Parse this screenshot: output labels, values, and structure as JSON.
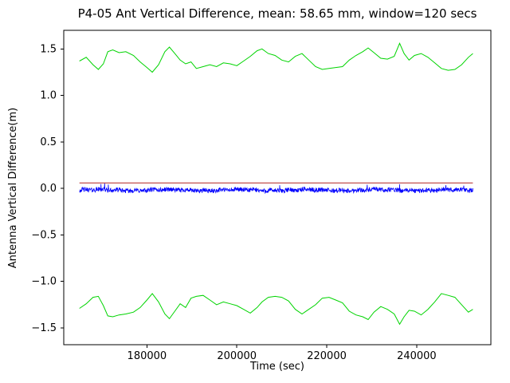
{
  "figure": {
    "title": "P4-05 Ant Vertical Difference, mean: 58.65 mm, window=120 secs",
    "xlabel": "Time (sec)",
    "ylabel": "Antenna Vertical Difference(m)"
  },
  "chart_data": {
    "type": "line",
    "title": "P4-05 Ant Vertical Difference, mean: 58.65 mm, window=120 secs",
    "xlabel": "Time (sec)",
    "ylabel": "Antenna Vertical Difference(m)",
    "mean_mm": 58.65,
    "window_secs": 120,
    "xlim": [
      161500,
      256500
    ],
    "ylim": [
      -1.68,
      1.7
    ],
    "xticks": [
      180000,
      200000,
      220000,
      240000
    ],
    "yticks": [
      -1.5,
      -1.0,
      -0.5,
      0.0,
      0.5,
      1.0,
      1.5
    ],
    "grid": false,
    "legend": null,
    "x_range_data": [
      165000,
      252500
    ],
    "series": [
      {
        "name": "upper-bound",
        "color": "#00d400",
        "width": 1,
        "points": [
          [
            165000,
            1.37
          ],
          [
            166500,
            1.41
          ],
          [
            168000,
            1.33
          ],
          [
            169200,
            1.28
          ],
          [
            170300,
            1.34
          ],
          [
            171300,
            1.47
          ],
          [
            172400,
            1.49
          ],
          [
            173800,
            1.46
          ],
          [
            175300,
            1.47
          ],
          [
            177000,
            1.43
          ],
          [
            178500,
            1.36
          ],
          [
            180000,
            1.3
          ],
          [
            181200,
            1.25
          ],
          [
            182600,
            1.33
          ],
          [
            184000,
            1.47
          ],
          [
            185000,
            1.52
          ],
          [
            186200,
            1.45
          ],
          [
            187400,
            1.38
          ],
          [
            188600,
            1.34
          ],
          [
            189800,
            1.36
          ],
          [
            191000,
            1.29
          ],
          [
            192500,
            1.31
          ],
          [
            194000,
            1.33
          ],
          [
            195500,
            1.31
          ],
          [
            197000,
            1.35
          ],
          [
            198500,
            1.34
          ],
          [
            200000,
            1.32
          ],
          [
            201500,
            1.37
          ],
          [
            203000,
            1.42
          ],
          [
            204500,
            1.48
          ],
          [
            205600,
            1.5
          ],
          [
            207000,
            1.45
          ],
          [
            208500,
            1.43
          ],
          [
            210000,
            1.38
          ],
          [
            211500,
            1.36
          ],
          [
            213000,
            1.42
          ],
          [
            214500,
            1.45
          ],
          [
            216000,
            1.38
          ],
          [
            217500,
            1.31
          ],
          [
            219000,
            1.28
          ],
          [
            220500,
            1.29
          ],
          [
            222000,
            1.3
          ],
          [
            223500,
            1.31
          ],
          [
            225000,
            1.38
          ],
          [
            226500,
            1.43
          ],
          [
            228000,
            1.47
          ],
          [
            229200,
            1.51
          ],
          [
            230500,
            1.46
          ],
          [
            232000,
            1.4
          ],
          [
            233500,
            1.39
          ],
          [
            235000,
            1.42
          ],
          [
            236200,
            1.56
          ],
          [
            237200,
            1.45
          ],
          [
            238300,
            1.38
          ],
          [
            239500,
            1.43
          ],
          [
            241000,
            1.45
          ],
          [
            242500,
            1.41
          ],
          [
            244000,
            1.35
          ],
          [
            245500,
            1.29
          ],
          [
            247000,
            1.27
          ],
          [
            248500,
            1.28
          ],
          [
            250000,
            1.33
          ],
          [
            251500,
            1.41
          ],
          [
            252500,
            1.45
          ]
        ]
      },
      {
        "name": "lower-bound",
        "color": "#00d400",
        "width": 1,
        "points": [
          [
            165000,
            -1.29
          ],
          [
            166500,
            -1.24
          ],
          [
            168000,
            -1.17
          ],
          [
            169200,
            -1.16
          ],
          [
            170300,
            -1.26
          ],
          [
            171300,
            -1.37
          ],
          [
            172400,
            -1.38
          ],
          [
            173800,
            -1.36
          ],
          [
            175300,
            -1.35
          ],
          [
            177000,
            -1.33
          ],
          [
            178500,
            -1.28
          ],
          [
            180000,
            -1.2
          ],
          [
            181200,
            -1.13
          ],
          [
            182600,
            -1.22
          ],
          [
            184000,
            -1.35
          ],
          [
            185000,
            -1.4
          ],
          [
            186200,
            -1.32
          ],
          [
            187400,
            -1.24
          ],
          [
            188600,
            -1.28
          ],
          [
            189800,
            -1.18
          ],
          [
            191000,
            -1.16
          ],
          [
            192500,
            -1.15
          ],
          [
            194000,
            -1.2
          ],
          [
            195500,
            -1.25
          ],
          [
            197000,
            -1.22
          ],
          [
            198500,
            -1.24
          ],
          [
            200000,
            -1.26
          ],
          [
            201500,
            -1.3
          ],
          [
            203000,
            -1.34
          ],
          [
            204500,
            -1.28
          ],
          [
            205600,
            -1.22
          ],
          [
            207000,
            -1.17
          ],
          [
            208500,
            -1.16
          ],
          [
            210000,
            -1.17
          ],
          [
            211500,
            -1.21
          ],
          [
            213000,
            -1.3
          ],
          [
            214500,
            -1.35
          ],
          [
            216000,
            -1.3
          ],
          [
            217500,
            -1.25
          ],
          [
            219000,
            -1.18
          ],
          [
            220500,
            -1.17
          ],
          [
            222000,
            -1.2
          ],
          [
            223500,
            -1.23
          ],
          [
            225000,
            -1.32
          ],
          [
            226500,
            -1.36
          ],
          [
            228000,
            -1.38
          ],
          [
            229200,
            -1.41
          ],
          [
            230500,
            -1.33
          ],
          [
            232000,
            -1.27
          ],
          [
            233500,
            -1.3
          ],
          [
            235000,
            -1.35
          ],
          [
            236200,
            -1.46
          ],
          [
            237200,
            -1.38
          ],
          [
            238300,
            -1.31
          ],
          [
            239500,
            -1.32
          ],
          [
            241000,
            -1.36
          ],
          [
            242500,
            -1.3
          ],
          [
            244000,
            -1.22
          ],
          [
            245500,
            -1.13
          ],
          [
            247000,
            -1.15
          ],
          [
            248500,
            -1.17
          ],
          [
            250000,
            -1.25
          ],
          [
            251500,
            -1.33
          ],
          [
            252500,
            -1.3
          ]
        ]
      },
      {
        "name": "antenna-vertical-difference",
        "color": "#0000ff",
        "width": 0.8,
        "noise": {
          "baseline": -0.018,
          "amplitude": 0.05,
          "n_points": 1300,
          "seed": 42,
          "spikes": [
            [
              169800,
              0.048
            ],
            [
              170600,
              0.055
            ],
            [
              171400,
              0.042
            ],
            [
              209500,
              0.035
            ],
            [
              229000,
              0.04
            ],
            [
              236200,
              0.045
            ],
            [
              246500,
              0.035
            ],
            [
              250500,
              0.03
            ]
          ]
        }
      },
      {
        "name": "mean-line",
        "color": "#b22222",
        "width": 1,
        "y": 0.05865
      }
    ]
  }
}
